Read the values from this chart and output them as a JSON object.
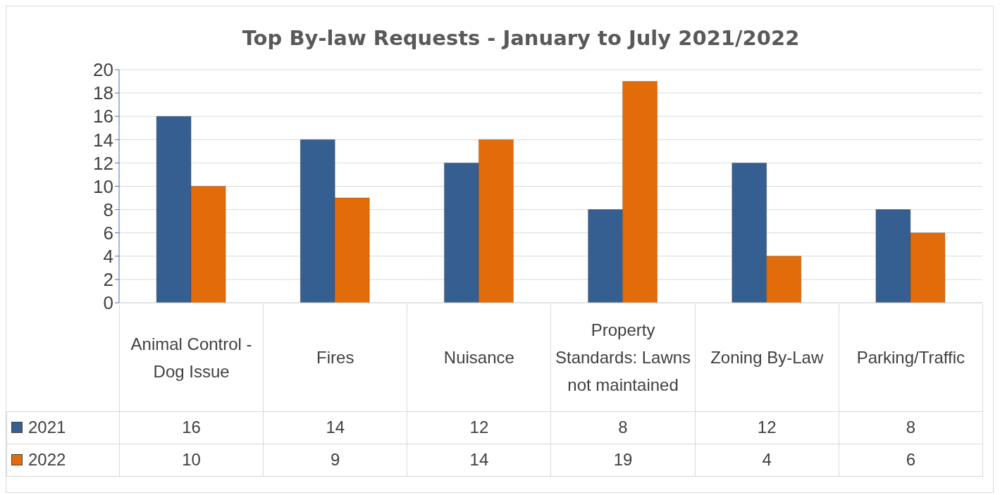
{
  "chart_data": {
    "type": "bar",
    "title": "Top By-law Requests - January to July 2021/2022",
    "categories": [
      "Animal Control - Dog Issue",
      "Fires",
      "Nuisance",
      "Property Standards: Lawns not maintained",
      "Zoning By-Law",
      "Parking/Traffic"
    ],
    "series": [
      {
        "name": "2021",
        "color": "#355f91",
        "values": [
          16,
          14,
          12,
          8,
          12,
          8
        ]
      },
      {
        "name": "2022",
        "color": "#e36c0a",
        "values": [
          10,
          9,
          14,
          19,
          4,
          6
        ]
      }
    ],
    "ylim": [
      0,
      20
    ],
    "yticks": [
      0,
      2,
      4,
      6,
      8,
      10,
      12,
      14,
      16,
      18,
      20
    ],
    "grid": "y",
    "data_labels": true,
    "legend": "bottom left"
  }
}
